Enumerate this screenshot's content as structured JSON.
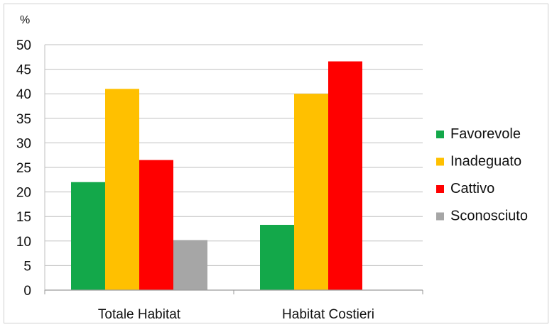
{
  "chart_data": {
    "type": "bar",
    "title": "",
    "xlabel": "",
    "ylabel": "%",
    "ylim": [
      0,
      50
    ],
    "yticks": [
      0,
      5,
      10,
      15,
      20,
      25,
      30,
      35,
      40,
      45,
      50
    ],
    "grid": true,
    "legend_position": "right",
    "categories": [
      "Totale Habitat",
      "Habitat Costieri"
    ],
    "series": [
      {
        "name": "Favorevole",
        "color": "#13a84a",
        "values": [
          22,
          13.3
        ]
      },
      {
        "name": "Inadeguato",
        "color": "#ffc000",
        "values": [
          41,
          40
        ]
      },
      {
        "name": "Cattivo",
        "color": "#ff0000",
        "values": [
          26.5,
          46.6
        ]
      },
      {
        "name": "Sconosciuto",
        "color": "#a6a6a6",
        "values": [
          10.2,
          null
        ]
      }
    ]
  }
}
